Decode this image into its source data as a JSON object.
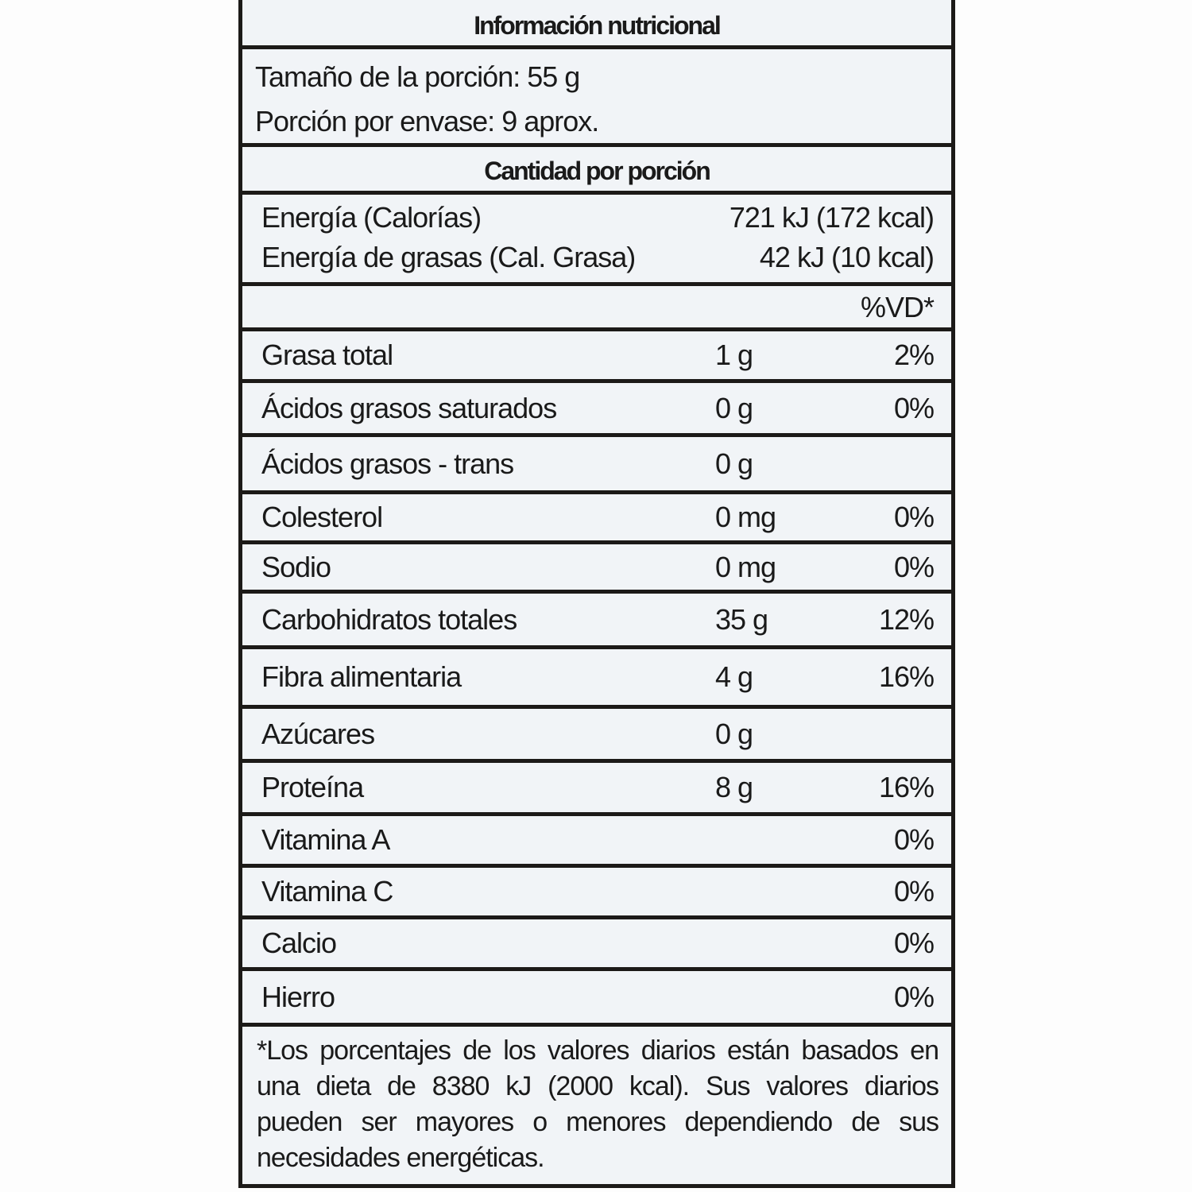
{
  "title": "Información nutricional",
  "serving_size": "Tamaño de la porción: 55 g",
  "servings_per_container": "Porción por envase: 9 aprox.",
  "amount_per_serving": "Cantidad por porción",
  "energy": {
    "label": "Energía (Calorías)",
    "value": "721 kJ (172 kcal)"
  },
  "fat_energy": {
    "label": "Energía de grasas (Cal. Grasa)",
    "value": "42 kJ (10 kcal)"
  },
  "dv_header": "%VD*",
  "nutrients": [
    {
      "name": "Grasa total",
      "amount": "1 g",
      "dv": "2%"
    },
    {
      "name": "Ácidos grasos saturados",
      "amount": "0 g",
      "dv": "0%"
    },
    {
      "name": "Ácidos grasos - trans",
      "amount": "0 g",
      "dv": ""
    },
    {
      "name": "Colesterol",
      "amount": "0 mg",
      "dv": "0%"
    },
    {
      "name": "Sodio",
      "amount": "0 mg",
      "dv": "0%"
    },
    {
      "name": "Carbohidratos totales",
      "amount": "35 g",
      "dv": "12%"
    },
    {
      "name": "Fibra alimentaria",
      "amount": "4 g",
      "dv": "16%"
    },
    {
      "name": "Azúcares",
      "amount": "0 g",
      "dv": ""
    },
    {
      "name": "Proteína",
      "amount": "8 g",
      "dv": "16%"
    },
    {
      "name": "Vitamina A",
      "amount": "",
      "dv": "0%"
    },
    {
      "name": "Vitamina C",
      "amount": "",
      "dv": "0%"
    },
    {
      "name": "Calcio",
      "amount": "",
      "dv": "0%"
    },
    {
      "name": "Hierro",
      "amount": "",
      "dv": "0%"
    }
  ],
  "footnote": "*Los porcentajes de los valores diarios están basados en una dieta de 8380 kJ (2000 kcal). Sus valores diarios pueden ser mayores o menores dependiendo de sus necesidades energéticas."
}
